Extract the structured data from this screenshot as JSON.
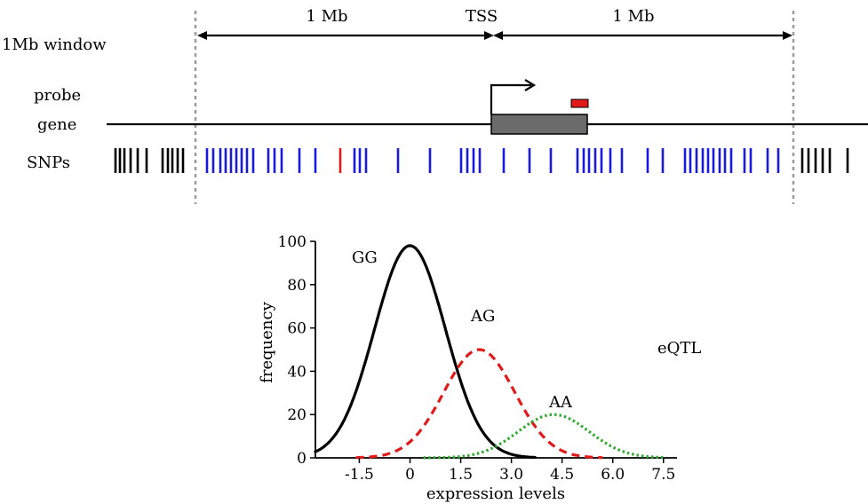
{
  "top_panel": {
    "labels": {
      "left_1mb": "1 Mb",
      "tss": "TSS",
      "right_1mb": "1 Mb",
      "window": "1Mb window",
      "probe": "probe",
      "gene": "gene",
      "snps": "SNPs"
    },
    "colors": {
      "snp_outside": "#000000",
      "snp_inside": "#1a1adb",
      "snp_highlight": "#e01919",
      "probe": "#e01919",
      "gene_body": "#6b6b6b",
      "boundary": "#9a9a9a"
    }
  },
  "chart_data": {
    "type": "line",
    "xlabel": "expression levels",
    "ylabel": "frequency",
    "xticks": [
      "-1.5",
      "0",
      "1.5",
      "3.0",
      "4.5",
      "6.0",
      "7.5"
    ],
    "yticks": [
      "0",
      "20",
      "40",
      "60",
      "80",
      "100"
    ],
    "ylim": [
      0,
      100
    ],
    "xlim": [
      -2.8,
      7.9
    ],
    "annotation": "eQTL",
    "series": [
      {
        "name": "GG",
        "color": "#000000",
        "style": "solid",
        "mean": 0,
        "sd": 1.05,
        "peak": 98,
        "range": [
          -2.8,
          3.7
        ]
      },
      {
        "name": "AG",
        "color": "#e01919",
        "style": "dashed",
        "mean": 2.05,
        "sd": 1.05,
        "peak": 50,
        "range": [
          -1.6,
          5.7
        ]
      },
      {
        "name": "AA",
        "color": "#2eab2e",
        "style": "dotted",
        "mean": 4.25,
        "sd": 1.05,
        "peak": 20,
        "range": [
          0.4,
          7.5
        ]
      }
    ]
  }
}
